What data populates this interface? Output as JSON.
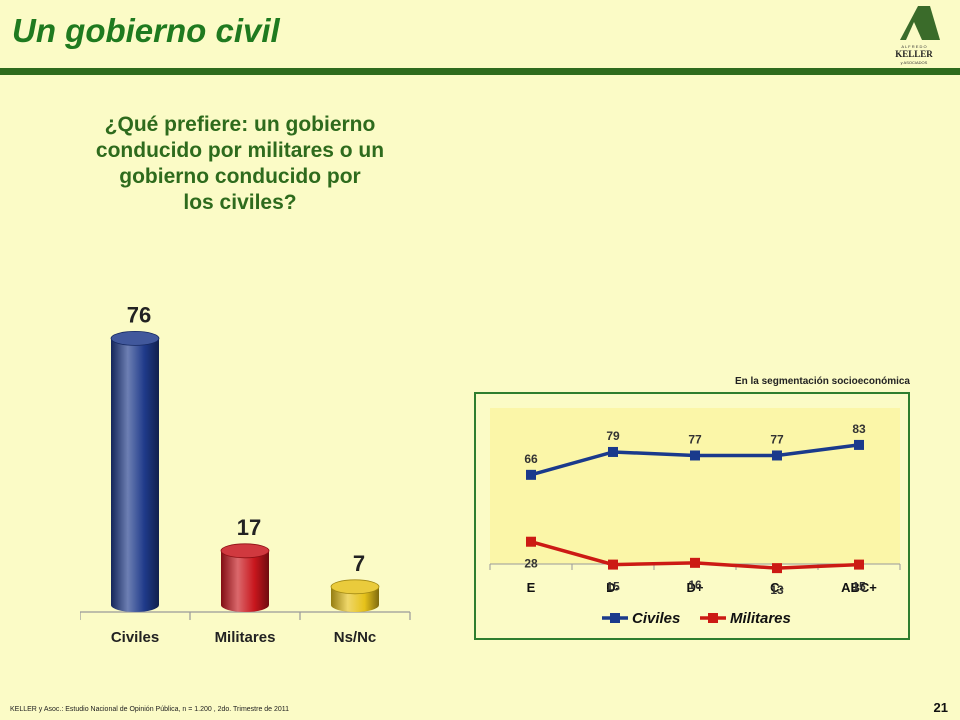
{
  "header": {
    "title": "Un gobierno civil",
    "logo": {
      "top": "A L F R E D O",
      "name": "KELLER",
      "bottom": "y ASOCIADOS"
    }
  },
  "question": "¿Qué prefiere: un gobierno\nconducido por militares o un\ngobierno conducido por\nlos civiles?",
  "segmentation_label": "En la segmentación socioeconómica",
  "footer": "KELLER y Asoc.: Estudio Nacional de Opinión Pública, n = 1.200 , 2do. Trimestre de 2011",
  "page_number": "21",
  "colors": {
    "brand_green": "#2e6b1d",
    "civiles": "#1f3a8a",
    "militares": "#c8161d",
    "nsnc": "#e6c21a"
  },
  "chart_data": [
    {
      "type": "bar",
      "categories": [
        "Civiles",
        "Militares",
        "Ns/Nc"
      ],
      "values": [
        76,
        17,
        7
      ],
      "colors": [
        "#1f3a8a",
        "#c8161d",
        "#e6c21a"
      ],
      "ylim": [
        0,
        80
      ],
      "grid": false
    },
    {
      "type": "line",
      "categories": [
        "E",
        "D-",
        "D+",
        "C-",
        "ABC+"
      ],
      "series": [
        {
          "name": "Civiles",
          "values": [
            66,
            79,
            77,
            77,
            83
          ],
          "color": "#1a3a8c"
        },
        {
          "name": "Militares",
          "values": [
            28,
            15,
            16,
            13,
            15
          ],
          "color": "#cc1a14"
        }
      ],
      "ylim": [
        0,
        100
      ],
      "legend": "bottom",
      "grid": false
    }
  ]
}
